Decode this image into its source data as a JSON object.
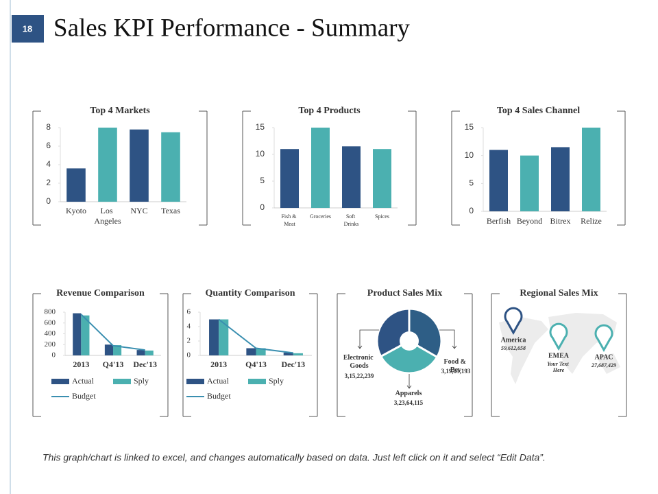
{
  "slide_number": "18",
  "title": "Sales KPI Performance - Summary",
  "chart_data": [
    {
      "type": "bar",
      "title": "Top 4 Markets",
      "categories": [
        "Kyoto",
        "Los Angeles",
        "NYC",
        "Texas"
      ],
      "values": [
        3.6,
        8,
        7.8,
        7.5
      ],
      "colors": [
        "#2e5384",
        "#4bb0b0",
        "#2e5384",
        "#4bb0b0"
      ],
      "ylim": [
        0,
        8
      ],
      "yticks": [
        0,
        2,
        4,
        6,
        8
      ]
    },
    {
      "type": "bar",
      "title": "Top 4 Products",
      "categories": [
        "Fish & Meat",
        "Groceries",
        "Soft Drinks",
        "Spices"
      ],
      "values": [
        11,
        15,
        11.5,
        11
      ],
      "colors": [
        "#2e5384",
        "#4bb0b0",
        "#2e5384",
        "#4bb0b0"
      ],
      "ylim": [
        0,
        15
      ],
      "yticks": [
        0,
        5,
        10,
        15
      ]
    },
    {
      "type": "bar",
      "title": "Top 4 Sales Channel",
      "categories": [
        "Berfish",
        "Beyond",
        "Bitrex",
        "Relize"
      ],
      "values": [
        11,
        10,
        11.5,
        15
      ],
      "colors": [
        "#2e5384",
        "#4bb0b0",
        "#2e5384",
        "#4bb0b0"
      ],
      "ylim": [
        0,
        15
      ],
      "yticks": [
        0,
        5,
        10,
        15
      ]
    },
    {
      "type": "bar",
      "title": "Revenue Comparison",
      "categories": [
        "2013",
        "Q4'13",
        "Dec'13"
      ],
      "series": [
        {
          "name": "Actual",
          "type": "bar",
          "color": "#2e5384",
          "values": [
            780,
            200,
            100
          ]
        },
        {
          "name": "Sply",
          "type": "bar",
          "color": "#4bb0b0",
          "values": [
            740,
            190,
            90
          ]
        },
        {
          "name": "Budget",
          "type": "line",
          "color": "#3a8fb0",
          "values": [
            760,
            180,
            100
          ]
        }
      ],
      "ylim": [
        0,
        800
      ],
      "yticks": [
        0,
        200,
        400,
        600,
        800
      ]
    },
    {
      "type": "bar",
      "title": "Quantity Comparison",
      "categories": [
        "2013",
        "Q4'13",
        "Dec'13"
      ],
      "series": [
        {
          "name": "Actual",
          "type": "bar",
          "color": "#2e5384",
          "values": [
            5,
            1,
            0.4
          ]
        },
        {
          "name": "Sply",
          "type": "bar",
          "color": "#4bb0b0",
          "values": [
            5,
            1,
            0.3
          ]
        },
        {
          "name": "Budget",
          "type": "line",
          "color": "#3a8fb0",
          "values": [
            5,
            1,
            0.35
          ]
        }
      ],
      "ylim": [
        0,
        6
      ],
      "yticks": [
        0,
        2,
        4,
        6
      ]
    },
    {
      "type": "pie",
      "title": "Product Sales Mix",
      "categories": [
        "Food & Bev",
        "Apparels",
        "Electronic Goods"
      ],
      "values": [
        31903193,
        32364115,
        31522239
      ],
      "value_labels": [
        "3,19,03,193",
        "3,23,64,115",
        "3,15,22,239"
      ],
      "colors": [
        "#2e5e86",
        "#4bb0b0",
        "#2e5384"
      ]
    }
  ],
  "regional_sales_mix": {
    "title": "Regional Sales Mix",
    "regions": [
      {
        "name": "America",
        "value": "59,612,658"
      },
      {
        "name": "EMEA",
        "value": "Your Text Here"
      },
      {
        "name": "APAC",
        "value": "27,687,429"
      }
    ]
  },
  "footer": "This graph/chart is linked to excel, and changes automatically based on data. Just left click on it and select “Edit Data”."
}
